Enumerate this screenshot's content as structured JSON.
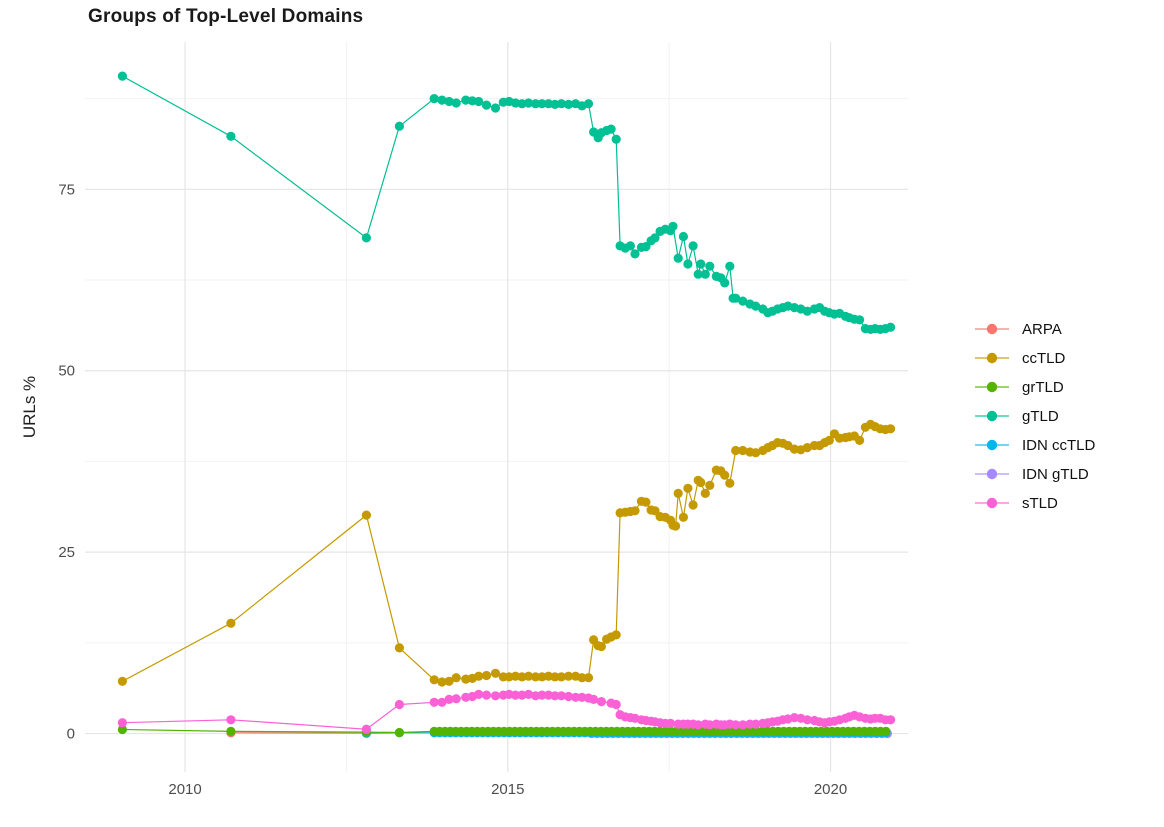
{
  "title": "Groups of Top-Level Domains",
  "axes": {
    "y_label": "URLs %",
    "x_ticks": [
      2010,
      2015,
      2020
    ],
    "x_minor": [
      2012.5,
      2017.5
    ],
    "y_ticks": [
      0,
      25,
      50,
      75
    ],
    "y_minor": [
      12.5,
      37.5,
      62.5,
      87.5
    ],
    "tick_color": "#4d4d4d",
    "major_grid_color": "#e5e5e5",
    "minor_grid_color": "#f2f2f2"
  },
  "chart_data": {
    "type": "line",
    "title": "Groups of Top-Level Domains",
    "xlabel": "",
    "ylabel": "URLs %",
    "x_range": [
      2008.45,
      2021.2
    ],
    "y_range": [
      -5.3,
      95.3
    ],
    "grid": true,
    "legend_position": "right",
    "series": [
      {
        "name": "ARPA",
        "color": "#F8766D",
        "legend_rank": 0,
        "points": [
          [
            2010.71,
            0.1
          ],
          [
            2012.81,
            0.05
          ]
        ]
      },
      {
        "name": "IDN gTLD",
        "color": "#A58AFF",
        "legend_rank": 5,
        "points": [],
        "runs": [
          {
            "from": 2016.3,
            "to": 2020.93,
            "step": 0.0833,
            "value": 0.0
          }
        ]
      },
      {
        "name": "IDN ccTLD",
        "color": "#00B6EB",
        "legend_rank": 4,
        "points": [
          [
            2012.81,
            0.05
          ],
          [
            2013.32,
            0.1
          ]
        ],
        "runs": [
          {
            "from": 2013.86,
            "to": 2020.93,
            "step": 0.0833,
            "value": 0.1
          }
        ]
      },
      {
        "name": "grTLD",
        "color": "#53B400",
        "legend_rank": 2,
        "points": [
          [
            2009.03,
            0.55
          ],
          [
            2010.71,
            0.3
          ],
          [
            2012.81,
            0.2
          ],
          [
            2013.32,
            0.15
          ]
        ],
        "runs": [
          {
            "from": 2013.86,
            "to": 2020.93,
            "step": 0.0833,
            "value": 0.3
          }
        ]
      },
      {
        "name": "ccTLD",
        "color": "#C49A00",
        "legend_rank": 1,
        "points": [
          [
            2009.03,
            7.2
          ],
          [
            2010.71,
            15.2
          ],
          [
            2012.81,
            30.1
          ],
          [
            2013.32,
            11.8
          ],
          [
            2013.86,
            7.4
          ],
          [
            2013.98,
            7.1
          ],
          [
            2014.09,
            7.2
          ],
          [
            2014.2,
            7.7
          ],
          [
            2014.35,
            7.5
          ],
          [
            2014.45,
            7.6
          ],
          [
            2014.55,
            7.9
          ],
          [
            2014.67,
            8.0
          ],
          [
            2014.81,
            8.3
          ],
          [
            2014.93,
            7.8
          ],
          [
            2015.02,
            7.8
          ],
          [
            2015.12,
            7.9
          ],
          [
            2015.22,
            7.8
          ],
          [
            2015.32,
            7.9
          ],
          [
            2015.43,
            7.8
          ],
          [
            2015.53,
            7.8
          ],
          [
            2015.63,
            7.9
          ],
          [
            2015.73,
            7.8
          ],
          [
            2015.83,
            7.8
          ],
          [
            2015.94,
            7.9
          ],
          [
            2016.05,
            7.9
          ],
          [
            2016.15,
            7.7
          ],
          [
            2016.25,
            7.7
          ],
          [
            2016.33,
            12.9
          ],
          [
            2016.4,
            12.1
          ],
          [
            2016.45,
            12.0
          ],
          [
            2016.53,
            13.0
          ],
          [
            2016.6,
            13.3
          ],
          [
            2016.68,
            13.6
          ],
          [
            2016.74,
            30.4
          ],
          [
            2016.82,
            30.5
          ],
          [
            2016.9,
            30.6
          ],
          [
            2016.97,
            30.7
          ],
          [
            2017.07,
            32.0
          ],
          [
            2017.14,
            31.9
          ],
          [
            2017.22,
            30.8
          ],
          [
            2017.28,
            30.7
          ],
          [
            2017.36,
            29.9
          ],
          [
            2017.44,
            29.8
          ],
          [
            2017.52,
            29.4
          ],
          [
            2017.56,
            28.7
          ],
          [
            2017.6,
            28.6
          ],
          [
            2017.64,
            33.1
          ],
          [
            2017.72,
            29.8
          ],
          [
            2017.79,
            33.8
          ],
          [
            2017.87,
            31.5
          ],
          [
            2017.95,
            34.9
          ],
          [
            2017.99,
            34.6
          ],
          [
            2018.06,
            33.1
          ],
          [
            2018.13,
            34.2
          ],
          [
            2018.23,
            36.3
          ],
          [
            2018.3,
            36.2
          ],
          [
            2018.36,
            35.6
          ],
          [
            2018.44,
            34.5
          ],
          [
            2018.53,
            39.0
          ],
          [
            2018.64,
            39.0
          ],
          [
            2018.75,
            38.8
          ],
          [
            2018.84,
            38.7
          ],
          [
            2018.95,
            39.0
          ],
          [
            2019.03,
            39.4
          ],
          [
            2019.1,
            39.7
          ],
          [
            2019.18,
            40.1
          ],
          [
            2019.26,
            40.0
          ],
          [
            2019.34,
            39.7
          ],
          [
            2019.44,
            39.2
          ],
          [
            2019.54,
            39.1
          ],
          [
            2019.64,
            39.4
          ],
          [
            2019.75,
            39.7
          ],
          [
            2019.83,
            39.7
          ],
          [
            2019.91,
            40.1
          ],
          [
            2019.98,
            40.4
          ],
          [
            2020.06,
            41.3
          ],
          [
            2020.14,
            40.7
          ],
          [
            2020.23,
            40.8
          ],
          [
            2020.29,
            40.9
          ],
          [
            2020.37,
            41.0
          ],
          [
            2020.45,
            40.4
          ],
          [
            2020.54,
            42.2
          ],
          [
            2020.62,
            42.6
          ],
          [
            2020.69,
            42.3
          ],
          [
            2020.77,
            42.0
          ],
          [
            2020.85,
            41.9
          ],
          [
            2020.93,
            42.0
          ]
        ]
      },
      {
        "name": "gTLD",
        "color": "#00C094",
        "legend_rank": 3,
        "points": [
          [
            2009.03,
            90.6
          ],
          [
            2010.71,
            82.3
          ],
          [
            2012.81,
            68.3
          ],
          [
            2013.32,
            83.7
          ],
          [
            2013.86,
            87.5
          ],
          [
            2013.98,
            87.3
          ],
          [
            2014.09,
            87.1
          ],
          [
            2014.2,
            86.9
          ],
          [
            2014.35,
            87.3
          ],
          [
            2014.45,
            87.2
          ],
          [
            2014.55,
            87.1
          ],
          [
            2014.67,
            86.6
          ],
          [
            2014.81,
            86.2
          ],
          [
            2014.93,
            87.0
          ],
          [
            2015.02,
            87.1
          ],
          [
            2015.12,
            86.9
          ],
          [
            2015.22,
            86.8
          ],
          [
            2015.32,
            86.9
          ],
          [
            2015.43,
            86.8
          ],
          [
            2015.53,
            86.8
          ],
          [
            2015.63,
            86.8
          ],
          [
            2015.73,
            86.7
          ],
          [
            2015.83,
            86.8
          ],
          [
            2015.94,
            86.7
          ],
          [
            2016.05,
            86.8
          ],
          [
            2016.15,
            86.5
          ],
          [
            2016.25,
            86.8
          ],
          [
            2016.33,
            82.9
          ],
          [
            2016.4,
            82.1
          ],
          [
            2016.45,
            82.8
          ],
          [
            2016.53,
            83.1
          ],
          [
            2016.6,
            83.3
          ],
          [
            2016.68,
            81.9
          ],
          [
            2016.74,
            67.2
          ],
          [
            2016.82,
            66.9
          ],
          [
            2016.9,
            67.2
          ],
          [
            2016.97,
            66.1
          ],
          [
            2017.07,
            67.0
          ],
          [
            2017.14,
            67.1
          ],
          [
            2017.22,
            67.9
          ],
          [
            2017.28,
            68.3
          ],
          [
            2017.36,
            69.2
          ],
          [
            2017.44,
            69.5
          ],
          [
            2017.52,
            69.3
          ],
          [
            2017.56,
            69.9
          ],
          [
            2017.64,
            65.5
          ],
          [
            2017.72,
            68.5
          ],
          [
            2017.79,
            64.7
          ],
          [
            2017.87,
            67.2
          ],
          [
            2017.95,
            63.3
          ],
          [
            2017.99,
            64.7
          ],
          [
            2018.06,
            63.3
          ],
          [
            2018.13,
            64.4
          ],
          [
            2018.23,
            63.0
          ],
          [
            2018.3,
            62.8
          ],
          [
            2018.36,
            62.1
          ],
          [
            2018.44,
            64.4
          ],
          [
            2018.49,
            60.0
          ],
          [
            2018.53,
            60.0
          ],
          [
            2018.64,
            59.6
          ],
          [
            2018.75,
            59.2
          ],
          [
            2018.84,
            58.9
          ],
          [
            2018.95,
            58.5
          ],
          [
            2019.03,
            58.0
          ],
          [
            2019.1,
            58.2
          ],
          [
            2019.18,
            58.5
          ],
          [
            2019.26,
            58.7
          ],
          [
            2019.34,
            58.9
          ],
          [
            2019.44,
            58.7
          ],
          [
            2019.54,
            58.5
          ],
          [
            2019.64,
            58.2
          ],
          [
            2019.75,
            58.5
          ],
          [
            2019.83,
            58.7
          ],
          [
            2019.91,
            58.2
          ],
          [
            2019.98,
            58.0
          ],
          [
            2020.06,
            57.8
          ],
          [
            2020.14,
            57.9
          ],
          [
            2020.23,
            57.5
          ],
          [
            2020.29,
            57.3
          ],
          [
            2020.37,
            57.1
          ],
          [
            2020.45,
            57.0
          ],
          [
            2020.54,
            55.8
          ],
          [
            2020.62,
            55.7
          ],
          [
            2020.69,
            55.8
          ],
          [
            2020.77,
            55.7
          ],
          [
            2020.85,
            55.8
          ],
          [
            2020.93,
            56.0
          ]
        ]
      },
      {
        "name": "sTLD",
        "color": "#FB61D7",
        "legend_rank": 6,
        "points": [
          [
            2009.03,
            1.5
          ],
          [
            2010.71,
            1.9
          ],
          [
            2012.81,
            0.6
          ],
          [
            2013.32,
            4.0
          ],
          [
            2013.86,
            4.3
          ],
          [
            2013.98,
            4.3
          ],
          [
            2014.09,
            4.7
          ],
          [
            2014.2,
            4.8
          ],
          [
            2014.35,
            5.0
          ],
          [
            2014.45,
            5.1
          ],
          [
            2014.55,
            5.4
          ],
          [
            2014.67,
            5.3
          ],
          [
            2014.81,
            5.2
          ],
          [
            2014.93,
            5.3
          ],
          [
            2015.02,
            5.4
          ],
          [
            2015.12,
            5.3
          ],
          [
            2015.22,
            5.3
          ],
          [
            2015.32,
            5.4
          ],
          [
            2015.43,
            5.2
          ],
          [
            2015.53,
            5.3
          ],
          [
            2015.63,
            5.3
          ],
          [
            2015.73,
            5.2
          ],
          [
            2015.83,
            5.2
          ],
          [
            2015.94,
            5.1
          ],
          [
            2016.05,
            5.0
          ],
          [
            2016.15,
            5.0
          ],
          [
            2016.25,
            4.9
          ],
          [
            2016.33,
            4.7
          ],
          [
            2016.45,
            4.4
          ],
          [
            2016.6,
            4.2
          ],
          [
            2016.68,
            4.0
          ],
          [
            2016.74,
            2.6
          ],
          [
            2016.82,
            2.3
          ],
          [
            2016.9,
            2.2
          ],
          [
            2016.97,
            2.1
          ],
          [
            2017.07,
            1.9
          ],
          [
            2017.14,
            1.8
          ],
          [
            2017.22,
            1.7
          ],
          [
            2017.28,
            1.6
          ],
          [
            2017.36,
            1.5
          ],
          [
            2017.44,
            1.4
          ],
          [
            2017.52,
            1.4
          ],
          [
            2017.64,
            1.3
          ],
          [
            2017.72,
            1.3
          ],
          [
            2017.79,
            1.3
          ],
          [
            2017.87,
            1.3
          ],
          [
            2017.95,
            1.2
          ],
          [
            2018.06,
            1.3
          ],
          [
            2018.13,
            1.2
          ],
          [
            2018.23,
            1.3
          ],
          [
            2018.3,
            1.2
          ],
          [
            2018.36,
            1.2
          ],
          [
            2018.44,
            1.3
          ],
          [
            2018.53,
            1.2
          ],
          [
            2018.64,
            1.2
          ],
          [
            2018.75,
            1.3
          ],
          [
            2018.84,
            1.3
          ],
          [
            2018.95,
            1.4
          ],
          [
            2019.03,
            1.5
          ],
          [
            2019.1,
            1.6
          ],
          [
            2019.18,
            1.7
          ],
          [
            2019.26,
            1.9
          ],
          [
            2019.34,
            2.0
          ],
          [
            2019.44,
            2.2
          ],
          [
            2019.54,
            2.1
          ],
          [
            2019.64,
            1.9
          ],
          [
            2019.75,
            1.8
          ],
          [
            2019.83,
            1.6
          ],
          [
            2019.91,
            1.5
          ],
          [
            2019.98,
            1.6
          ],
          [
            2020.06,
            1.7
          ],
          [
            2020.14,
            1.9
          ],
          [
            2020.23,
            2.1
          ],
          [
            2020.29,
            2.3
          ],
          [
            2020.37,
            2.5
          ],
          [
            2020.45,
            2.3
          ],
          [
            2020.54,
            2.1
          ],
          [
            2020.62,
            2.0
          ],
          [
            2020.69,
            2.1
          ],
          [
            2020.77,
            2.1
          ],
          [
            2020.85,
            1.9
          ],
          [
            2020.93,
            1.9
          ]
        ]
      }
    ]
  }
}
